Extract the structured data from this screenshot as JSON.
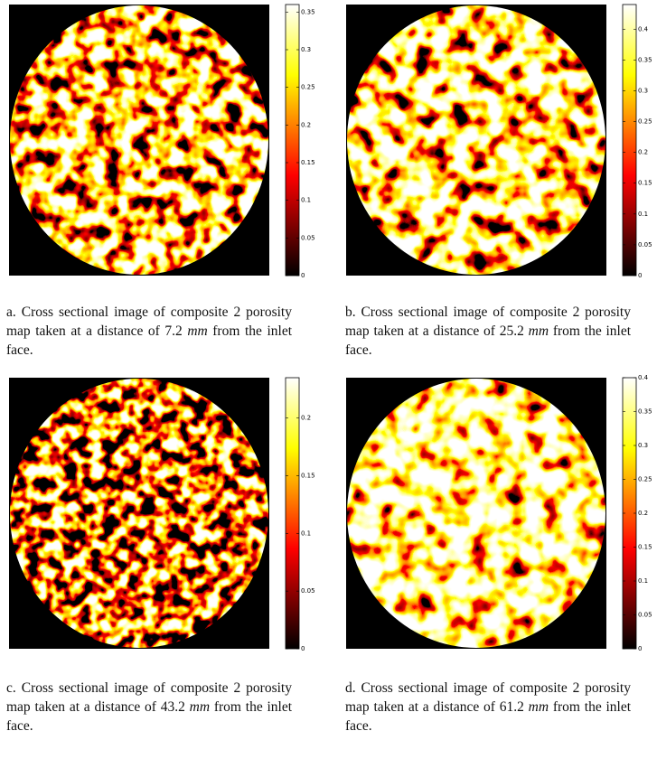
{
  "panels": [
    {
      "colorbar": {
        "ylim": [
          0,
          0.36
        ],
        "yticks": [
          0,
          0.05,
          0.1,
          0.15,
          0.2,
          0.25,
          0.3,
          0.35
        ]
      },
      "caption": {
        "label": "a.",
        "text": "Cross sectional image of composite 2 porosity map taken at a distance of 7.2",
        "unit": "mm",
        "tail": "from the inlet face."
      }
    },
    {
      "colorbar": {
        "ylim": [
          0,
          0.44
        ],
        "yticks": [
          0,
          0.05,
          0.1,
          0.15,
          0.2,
          0.25,
          0.3,
          0.35,
          0.4
        ]
      },
      "caption": {
        "label": "b.",
        "text": "Cross sectional image of composite 2 porosity map taken at a distance of 25.2",
        "unit": "mm",
        "tail": "from the inlet face."
      }
    },
    {
      "colorbar": {
        "ylim": [
          0,
          0.235
        ],
        "yticks": [
          0,
          0.05,
          0.1,
          0.15,
          0.2
        ]
      },
      "caption": {
        "label": "c.",
        "text": "Cross sectional image of composite 2 porosity map taken at a distance of 43.2",
        "unit": "mm",
        "tail": "from the inlet face."
      }
    },
    {
      "colorbar": {
        "ylim": [
          0,
          0.4
        ],
        "yticks": [
          0,
          0.05,
          0.1,
          0.15,
          0.2,
          0.25,
          0.3,
          0.35,
          0.4
        ]
      },
      "caption": {
        "label": "d.",
        "text": "Cross sectional image of composite 2 porosity map taken at a distance of 61.2",
        "unit": "mm",
        "tail": "from the inlet face."
      }
    }
  ]
}
